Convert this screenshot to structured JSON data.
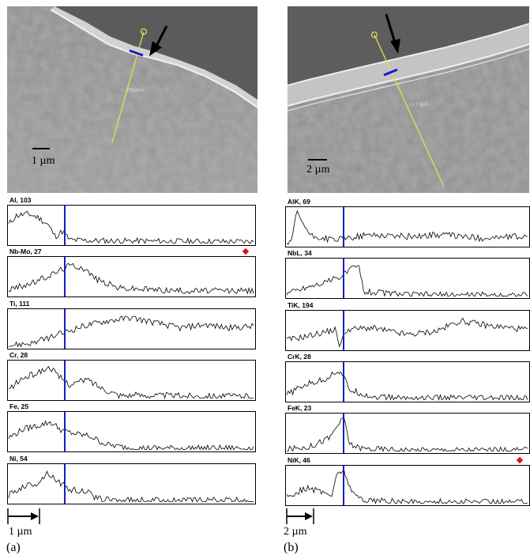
{
  "figure": {
    "panel_a": {
      "letter": "(a)",
      "sem_scale": "1 µm",
      "profile_scale": "1 µm",
      "line_marker": "~7542nm",
      "profiles": [
        {
          "label": "Al, 103"
        },
        {
          "label": "Nb-Mo, 27"
        },
        {
          "label": "Ti, 111"
        },
        {
          "label": "Cr, 28"
        },
        {
          "label": "Fe, 25"
        },
        {
          "label": "Ni, 54"
        }
      ]
    },
    "panel_b": {
      "letter": "(b)",
      "sem_scale": "2 µm",
      "profile_scale": "2 µm",
      "line_marker": "~17.6µm",
      "profiles": [
        {
          "label": "AlK, 69"
        },
        {
          "label": "NbL, 34"
        },
        {
          "label": "TiK, 194"
        },
        {
          "label": "CrK, 28"
        },
        {
          "label": "FeK, 23"
        },
        {
          "label": "NiK, 46"
        }
      ]
    }
  },
  "colors": {
    "interface_line": "#1a1acc",
    "trace_line": "#000000",
    "red_marker": "#e01010",
    "scan_line": "#e6e04a"
  }
}
